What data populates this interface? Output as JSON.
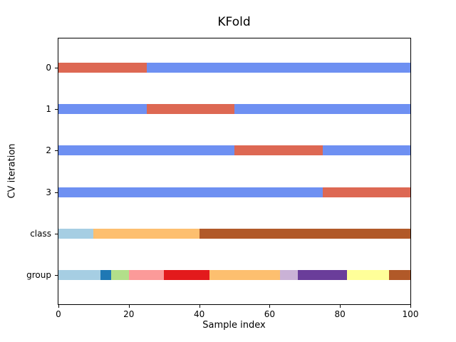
{
  "chart_data": {
    "type": "bar",
    "variant": "horizontal-segmented-cv-indices",
    "title": "KFold",
    "xlabel": "Sample index",
    "ylabel": "CV iteration",
    "xlim": [
      0,
      100
    ],
    "x_ticks": [
      0,
      20,
      40,
      60,
      80,
      100
    ],
    "legend": "none",
    "grid": false,
    "colors": {
      "train": "#6e90f2",
      "test": "#dd6853"
    },
    "rows": [
      {
        "label": "0",
        "segments": [
          {
            "start": 0,
            "end": 25,
            "color": "#dd6853"
          },
          {
            "start": 25,
            "end": 100,
            "color": "#6e90f2"
          }
        ]
      },
      {
        "label": "1",
        "segments": [
          {
            "start": 0,
            "end": 25,
            "color": "#6e90f2"
          },
          {
            "start": 25,
            "end": 50,
            "color": "#dd6853"
          },
          {
            "start": 50,
            "end": 100,
            "color": "#6e90f2"
          }
        ]
      },
      {
        "label": "2",
        "segments": [
          {
            "start": 0,
            "end": 50,
            "color": "#6e90f2"
          },
          {
            "start": 50,
            "end": 75,
            "color": "#dd6853"
          },
          {
            "start": 75,
            "end": 100,
            "color": "#6e90f2"
          }
        ]
      },
      {
        "label": "3",
        "segments": [
          {
            "start": 0,
            "end": 75,
            "color": "#6e90f2"
          },
          {
            "start": 75,
            "end": 100,
            "color": "#dd6853"
          }
        ]
      },
      {
        "label": "class",
        "segments": [
          {
            "start": 0,
            "end": 10,
            "color": "#a6cee3"
          },
          {
            "start": 10,
            "end": 40,
            "color": "#fdbf6f"
          },
          {
            "start": 40,
            "end": 100,
            "color": "#b15928"
          }
        ]
      },
      {
        "label": "group",
        "segments": [
          {
            "start": 0,
            "end": 12,
            "color": "#a6cee3"
          },
          {
            "start": 12,
            "end": 15,
            "color": "#1f78b4"
          },
          {
            "start": 15,
            "end": 20,
            "color": "#b2df8a"
          },
          {
            "start": 20,
            "end": 30,
            "color": "#fb9a99"
          },
          {
            "start": 30,
            "end": 43,
            "color": "#e31a1c"
          },
          {
            "start": 43,
            "end": 63,
            "color": "#fdbf6f"
          },
          {
            "start": 63,
            "end": 68,
            "color": "#cab2d6"
          },
          {
            "start": 68,
            "end": 82,
            "color": "#6a3d9a"
          },
          {
            "start": 82,
            "end": 94,
            "color": "#ffff99"
          },
          {
            "start": 94,
            "end": 100,
            "color": "#b15928"
          }
        ]
      }
    ]
  }
}
